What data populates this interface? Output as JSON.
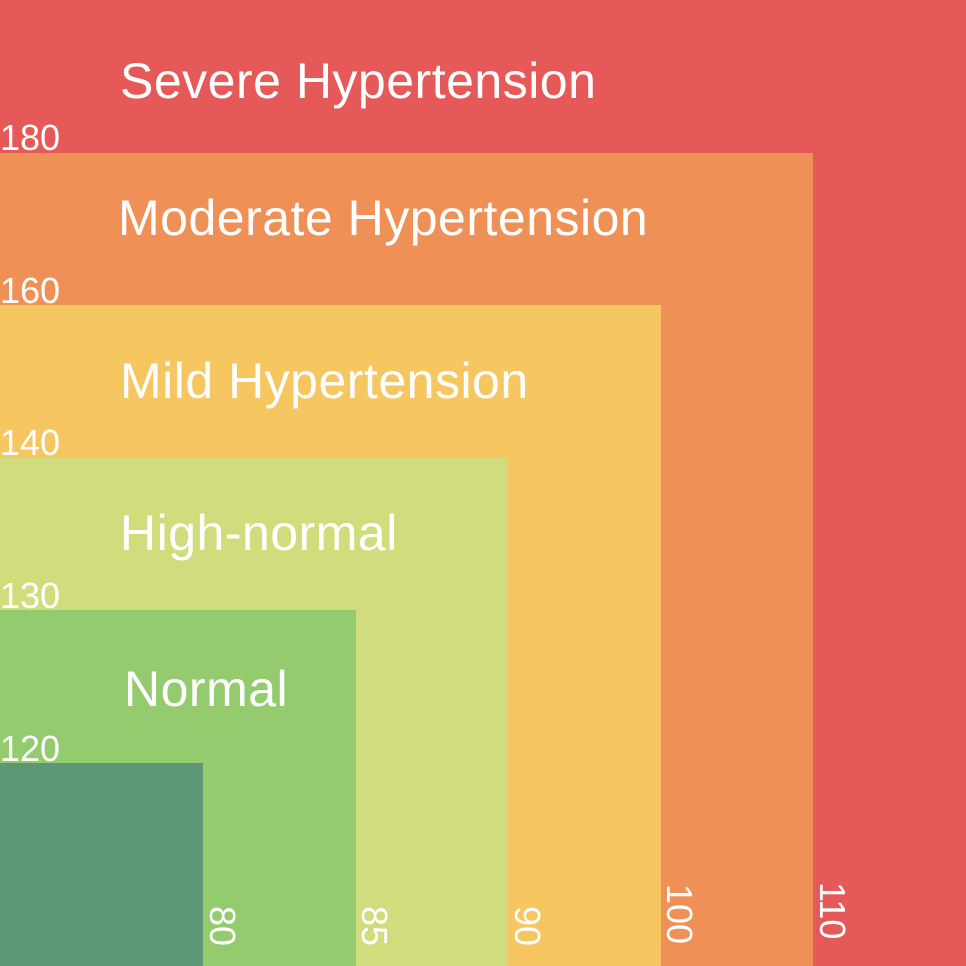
{
  "zones": [
    {
      "id": "severe",
      "label": "Severe Hypertension",
      "color": "#E55A58"
    },
    {
      "id": "moderate",
      "label": "Moderate Hypertension",
      "color": "#EF9157"
    },
    {
      "id": "mild",
      "label": "Mild Hypertension",
      "color": "#F6C660"
    },
    {
      "id": "high-normal",
      "label": "High-normal",
      "color": "#D1DD7C"
    },
    {
      "id": "normal",
      "label": "Normal",
      "color": "#93CB6E"
    },
    {
      "id": "optimal",
      "label": "",
      "color": "#5E9776"
    }
  ],
  "systolic_ticks": [
    "180",
    "160",
    "140",
    "130",
    "120"
  ],
  "diastolic_ticks": [
    "80",
    "85",
    "90",
    "100",
    "110"
  ]
}
